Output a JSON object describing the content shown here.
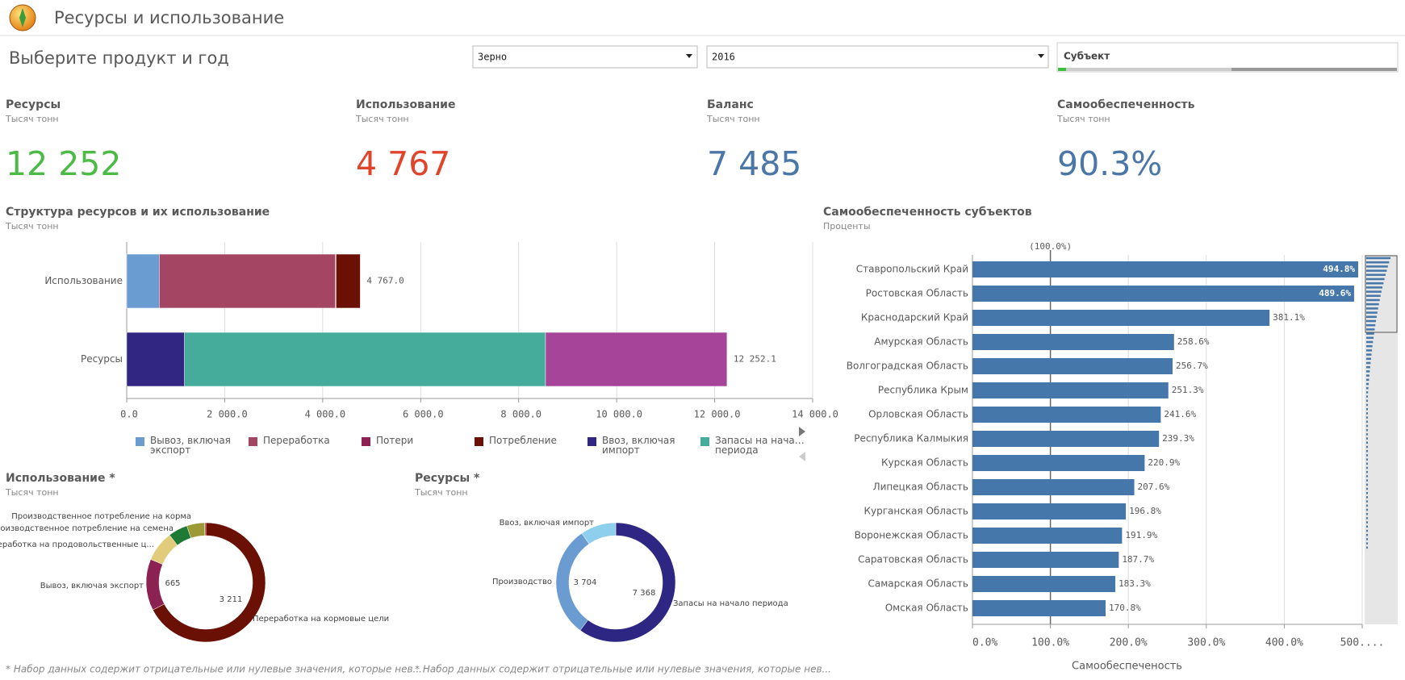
{
  "header": {
    "title": "Ресурсы и использование"
  },
  "selector": {
    "prompt": "Выберите продукт и год",
    "filters": [
      "Зерно",
      "2016",
      "Субъект"
    ]
  },
  "kpis": [
    {
      "title": "Ресурсы",
      "subtitle": "Тысяч тонн",
      "value": "12 252",
      "color": "#4cbb45"
    },
    {
      "title": "Использование",
      "subtitle": "Тысяч тонн",
      "value": "4 767",
      "color": "#e0452b"
    },
    {
      "title": "Баланс",
      "subtitle": "Тысяч тонн",
      "value": "7 485",
      "color": "#4a76a8"
    },
    {
      "title": "Самообеспеченность",
      "subtitle": "Тысяч тонн",
      "value": "90.3%",
      "color": "#4a76a8"
    }
  ],
  "chart_data": [
    {
      "type": "bar",
      "orientation": "horizontal",
      "stacked": true,
      "title": "Структура ресурсов и их использование",
      "subtitle": "Тысяч тонн",
      "categories": [
        "Использование",
        "Ресурсы"
      ],
      "series": [
        {
          "name": "Вывоз, включая экспорт",
          "color": "#6a9bd1",
          "values": [
            665,
            null
          ]
        },
        {
          "name": "Переработка",
          "color": "#a44563",
          "values": [
            3594,
            null
          ]
        },
        {
          "name": "Потери",
          "color": "#8e2154",
          "values": [
            15,
            null
          ]
        },
        {
          "name": "Потребление",
          "color": "#6b1005",
          "values": [
            493,
            null
          ]
        },
        {
          "name": "Ввоз, включая импорт",
          "color": "#312783",
          "values": [
            null,
            1180
          ]
        },
        {
          "name": "Запасы на нача… периода",
          "color": "#45ab9b",
          "values": [
            null,
            7368
          ]
        },
        {
          "color": "#a6449a",
          "values": [
            null,
            3704.1
          ]
        }
      ],
      "totals": [
        4767,
        12252.1
      ],
      "total_labels": [
        "4 767.0",
        "12 252.1"
      ],
      "xlim": [
        0,
        14000
      ],
      "xticks": [
        {
          "value": 0,
          "label": "0.0"
        },
        {
          "value": 2000,
          "label": "2 000.0"
        },
        {
          "value": 4000,
          "label": "4 000.0"
        },
        {
          "value": 6000,
          "label": "6 000.0"
        },
        {
          "value": 8000,
          "label": "8 000.0"
        },
        {
          "value": 10000,
          "label": "10 000.0"
        },
        {
          "value": 12000,
          "label": "12 000.0"
        },
        {
          "value": 14000,
          "label": "14 000.0"
        }
      ],
      "grid": true
    },
    {
      "type": "pie",
      "donut": true,
      "title": "Использование *",
      "subtitle": "Тысяч тонн",
      "categories": [
        "Переработка на кормовые цели",
        "Вывоз, включая экспорт",
        "Переработка на продовольственные ц...",
        "Производственное потребление на семена",
        "Производственное потребление на корма",
        null
      ],
      "values": [
        3211,
        665,
        396,
        250,
        230,
        15
      ],
      "value_labels": [
        "3 211",
        "665",
        null,
        null,
        null,
        null
      ],
      "colors": [
        "#6b1005",
        "#8b2252",
        "#e0cc7a",
        "#1e7a34",
        "#9c9a34",
        "#c0392b"
      ],
      "note": "* Набор данных содержит отрицательные или нулевые значения, которые нев..."
    },
    {
      "type": "pie",
      "donut": true,
      "title": "Ресурсы *",
      "subtitle": "Тысяч тонн",
      "categories": [
        "Запасы на начало периода",
        "Производство",
        "Ввоз, включая импорт"
      ],
      "values": [
        7368,
        3704,
        1180
      ],
      "value_labels": [
        "7 368",
        "3 704",
        null
      ],
      "colors": [
        "#2e2683",
        "#6a9bd1",
        "#8ecfee"
      ],
      "note": "* Набор данных содержит отрицательные или нулевые значения, которые нев..."
    },
    {
      "type": "bar",
      "orientation": "horizontal",
      "title": "Самообеспеченность субъектов",
      "subtitle": "Проценты",
      "x_label": "Самообеспеченость",
      "categories": [
        "Ставропольский Край",
        "Ростовская Область",
        "Краснодарский Край",
        "Амурская Область",
        "Волгоградская Область",
        "Республика Крым",
        "Орловская Область",
        "Республика Калмыкия",
        "Курская Область",
        "Липецкая Область",
        "Курганская Область",
        "Воронежская Область",
        "Саратовская Область",
        "Самарская Область",
        "Омская Область"
      ],
      "values": [
        494.8,
        489.6,
        381.1,
        258.6,
        256.7,
        251.3,
        241.6,
        239.3,
        220.9,
        207.6,
        196.8,
        191.9,
        187.7,
        183.3,
        170.8
      ],
      "value_labels": [
        "494.8%",
        "489.6%",
        "381.1%",
        "258.6%",
        "256.7%",
        "251.3%",
        "241.6%",
        "239.3%",
        "220.9%",
        "207.6%",
        "196.8%",
        "191.9%",
        "187.7%",
        "183.3%",
        "170.8%"
      ],
      "color": "#4677aa",
      "xlim": [
        0,
        500
      ],
      "xticks": [
        {
          "value": 0,
          "label": "0.0%"
        },
        {
          "value": 100,
          "label": "100.0%"
        },
        {
          "value": 200,
          "label": "200.0%"
        },
        {
          "value": 300,
          "label": "300.0%"
        },
        {
          "value": 400,
          "label": "400.0%"
        },
        {
          "value": 500,
          "label": "500...."
        }
      ],
      "reference_line": {
        "value": 100,
        "label": "(100.0%)"
      },
      "grid": true
    }
  ]
}
